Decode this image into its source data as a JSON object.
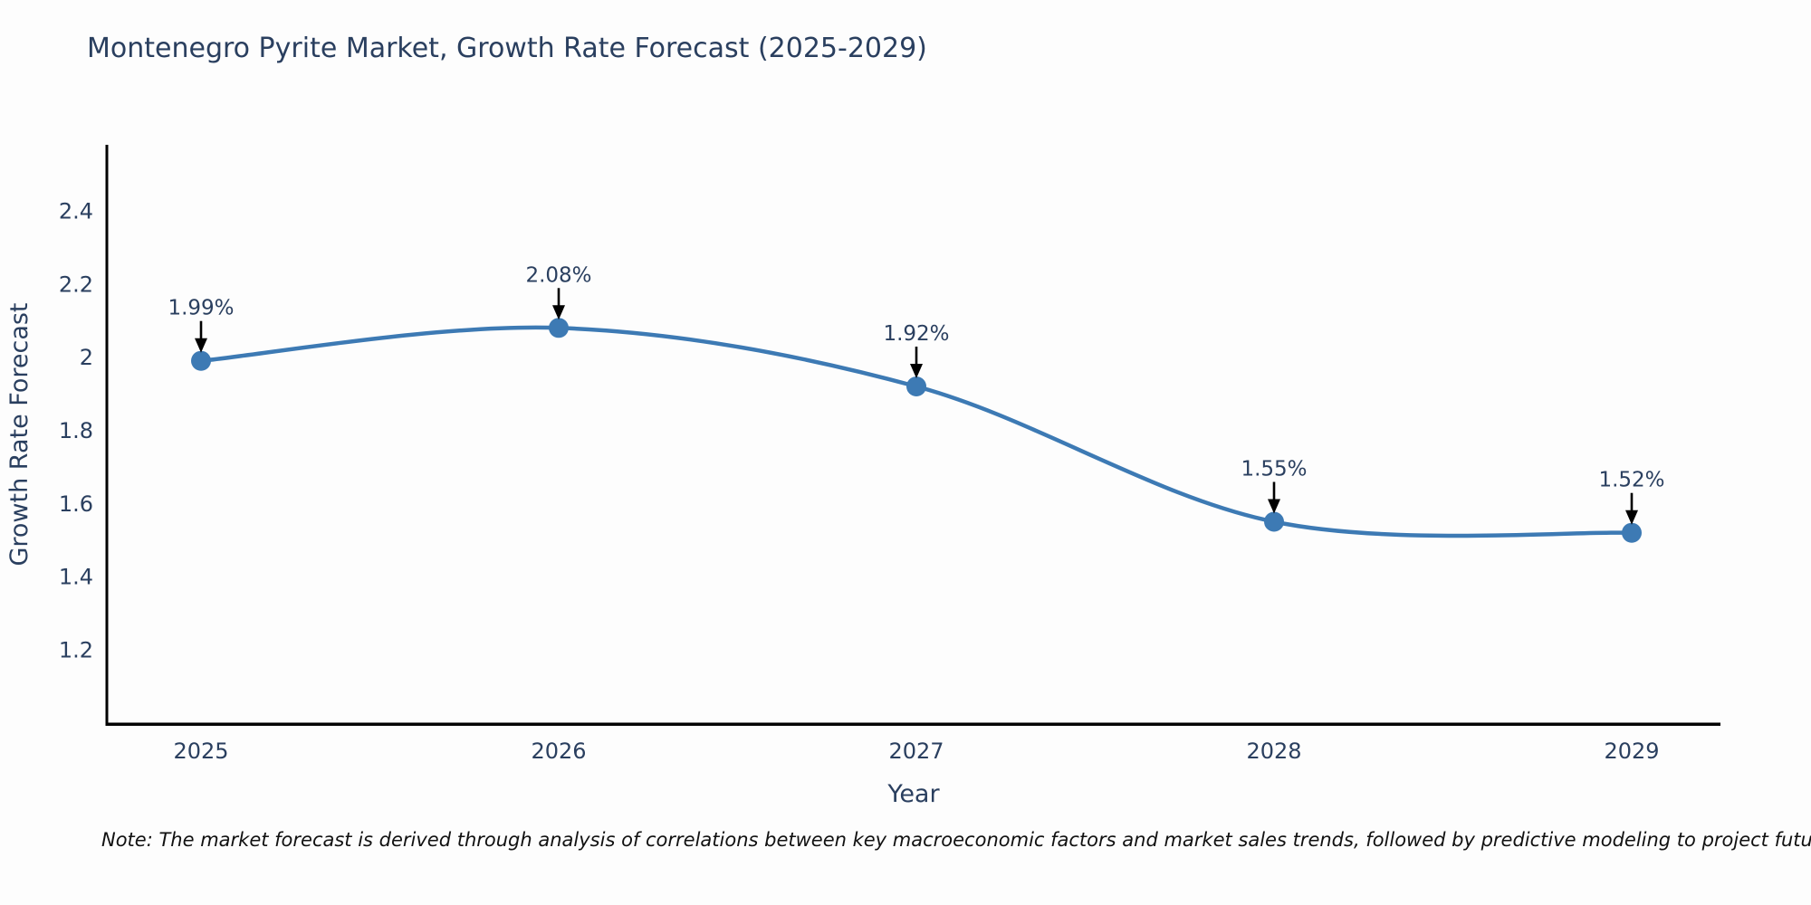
{
  "title": "Montenegro Pyrite Market, Growth Rate Forecast (2025-2029)",
  "note": "Note: The market forecast is derived through analysis of correlations between key macroeconomic factors and market sales trends, followed by predictive modeling to project future sales",
  "chart_data": {
    "type": "line",
    "title": "Montenegro Pyrite Market, Growth Rate Forecast (2025-2029)",
    "xlabel": "Year",
    "ylabel": "Growth Rate Forecast",
    "categories": [
      "2025",
      "2026",
      "2027",
      "2028",
      "2029"
    ],
    "x": [
      2025,
      2026,
      2027,
      2028,
      2029
    ],
    "values": [
      1.99,
      2.08,
      1.92,
      1.55,
      1.52
    ],
    "point_labels": [
      "1.99%",
      "2.08%",
      "1.92%",
      "1.55%",
      "1.52%"
    ],
    "yticks": [
      2.4,
      2.2,
      2.0,
      1.8,
      1.6,
      1.4,
      1.2
    ],
    "ytick_labels": [
      "2.4",
      "2.2",
      "2",
      "1.8",
      "1.6",
      "1.4",
      "1.2"
    ],
    "ylim": [
      1.0,
      2.58
    ],
    "line_shape": "spline",
    "grid": false,
    "legend": "none",
    "annotation_style": "value label with downward black arrow to each marker",
    "colors": {
      "line": "#3d7ab4",
      "marker": "#3d7ab4",
      "axis": "#000000",
      "text": "#2a3f5f",
      "arrow": "#000000",
      "background": "#fdfdfd"
    }
  }
}
